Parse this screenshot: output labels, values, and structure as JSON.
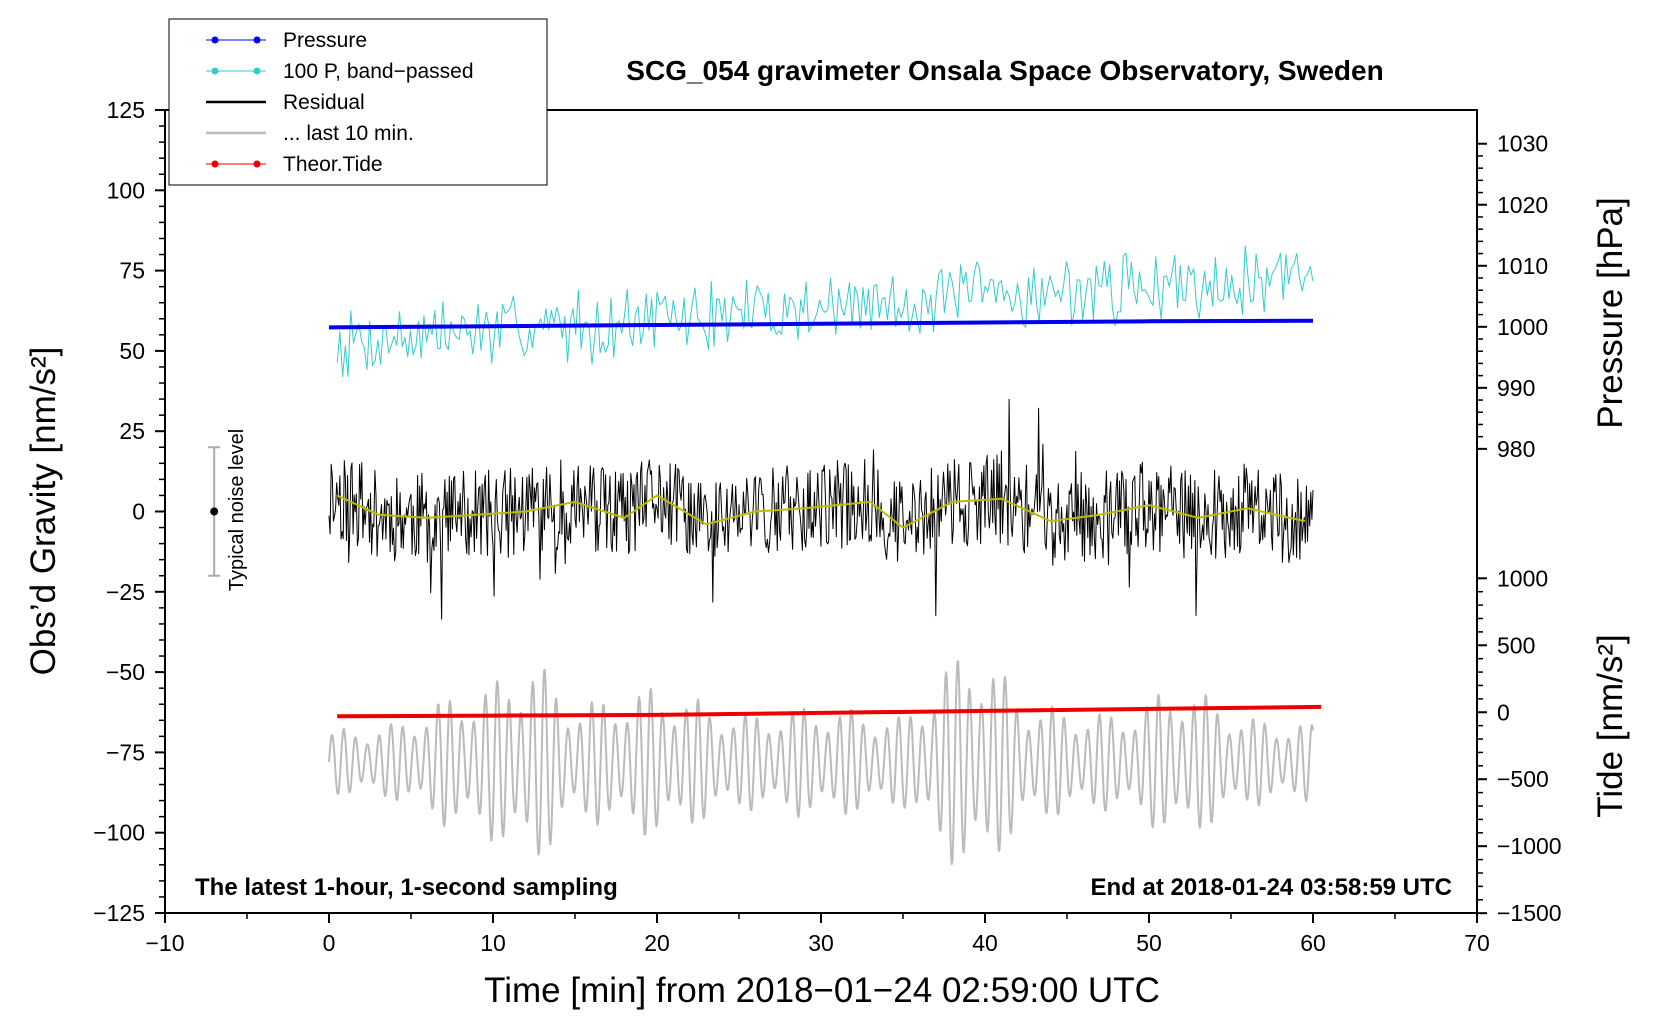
{
  "chart_data": {
    "type": "line",
    "title": "SCG_054 gravimeter Onsala Space Observatory, Sweden",
    "xlabel": "Time [min] from 2018−01−24 02:59:00 UTC",
    "ylabel_left": "Obs’d Gravity [nm/s²]",
    "ylabel_right_pressure": "Pressure [hPa]",
    "ylabel_right_tide": "Tide [nm/s²]",
    "xlim": [
      -10,
      70
    ],
    "ylim": [
      -125,
      125
    ],
    "x_ticks": [
      -10,
      0,
      10,
      20,
      30,
      40,
      50,
      60,
      70
    ],
    "x_tick_labels": [
      "−10",
      "0",
      "10",
      "20",
      "30",
      "40",
      "50",
      "60",
      "70"
    ],
    "y_ticks": [
      -125,
      -100,
      -75,
      -50,
      -25,
      0,
      25,
      50,
      75,
      100,
      125
    ],
    "y_tick_labels": [
      "−125",
      "−100",
      "−75",
      "−50",
      "−25",
      "0",
      "25",
      "50",
      "75",
      "100",
      "125"
    ],
    "pressure_axis": {
      "ticks": [
        980,
        990,
        1000,
        1010,
        1020,
        1030
      ],
      "tick_labels": [
        "980",
        "990",
        "1000",
        "1010",
        "1020",
        "1030"
      ],
      "map_gravity_at_1000": 57.5,
      "gravity_per_hpa": 1.9
    },
    "tide_axis": {
      "ticks": [
        -1500,
        -1000,
        -500,
        0,
        500,
        1000
      ],
      "tick_labels": [
        "−1500",
        "−1000",
        "−500",
        "0",
        "500",
        "1000"
      ],
      "map_gravity_at_0": -62.5,
      "gravity_per_unit": 0.0417
    },
    "legend": {
      "position": "top-left",
      "entries": [
        {
          "label": "Pressure",
          "color": "#0000ee",
          "marker": true
        },
        {
          "label": "100 P, band−passed",
          "color": "#33cccc",
          "marker": true
        },
        {
          "label": "Residual",
          "color": "#000000",
          "marker": false
        },
        {
          "label": "... last 10 min.",
          "color": "#bbbbbb",
          "marker": false
        },
        {
          "label": "Theor.Tide",
          "color": "#ee0000",
          "marker": true
        }
      ]
    },
    "series": [
      {
        "name": "Pressure",
        "color": "#0000ee",
        "units": "hPa",
        "x": [
          0,
          10,
          20,
          30,
          40,
          50,
          60
        ],
        "values": [
          999.9,
          1000.1,
          1000.3,
          1000.5,
          1000.7,
          1000.9,
          1001.0
        ]
      },
      {
        "name": "100 P, band-passed",
        "color": "#33cccc",
        "offset_hpa": 1000,
        "x_range": [
          0.5,
          60
        ],
        "envelope_start": [
          40,
          66
        ],
        "envelope_end": [
          62,
          86
        ],
        "noise_amplitude": 9,
        "samples": 360,
        "seed": 7
      },
      {
        "name": "Residual",
        "color": "#000000",
        "x_range": [
          0,
          60
        ],
        "baseline": 0,
        "noise_amplitude": 14,
        "min": -42,
        "max": 42,
        "samples": 900,
        "seed": 11
      },
      {
        "name": "Residual smoothed",
        "color": "#bbbb00",
        "x": [
          0.5,
          3,
          6,
          9,
          12,
          15,
          18,
          20,
          23,
          26,
          29,
          33,
          35,
          38,
          41,
          44,
          47,
          50,
          53,
          56,
          59.5
        ],
        "values": [
          5,
          -1,
          -2,
          -1,
          0,
          3,
          -2,
          5,
          -4,
          0,
          1,
          3,
          -5,
          3,
          4,
          -3,
          -1,
          2,
          -2,
          1,
          -3
        ]
      },
      {
        "name": "Theor.Tide",
        "color": "#ee0000",
        "units": "nm/s²",
        "x": [
          0.5,
          10,
          20,
          30,
          40,
          50,
          60.5
        ],
        "values": [
          -30,
          -25,
          -20,
          -5,
          10,
          25,
          40
        ]
      },
      {
        "name": "... last 10 min.",
        "color": "#bbbbbb",
        "x_range": [
          0,
          60
        ],
        "center": -78,
        "period_min": 0.72,
        "amplitude_profile": [
          [
            0,
            10
          ],
          [
            4,
            12
          ],
          [
            7,
            20
          ],
          [
            10,
            25
          ],
          [
            12.5,
            33
          ],
          [
            15,
            18
          ],
          [
            20,
            24
          ],
          [
            25,
            15
          ],
          [
            30,
            18
          ],
          [
            35,
            14
          ],
          [
            39,
            38
          ],
          [
            43,
            18
          ],
          [
            48,
            15
          ],
          [
            52,
            25
          ],
          [
            56,
            14
          ],
          [
            60,
            12
          ]
        ],
        "samples": 1400
      }
    ],
    "noise_indicator": {
      "label": "Typical noise level",
      "x": -7,
      "center": 0,
      "half_range": 20
    },
    "annotations": {
      "left": "The latest 1-hour, 1-second sampling",
      "right": "End at 2018-01-24 03:58:59 UTC"
    }
  }
}
